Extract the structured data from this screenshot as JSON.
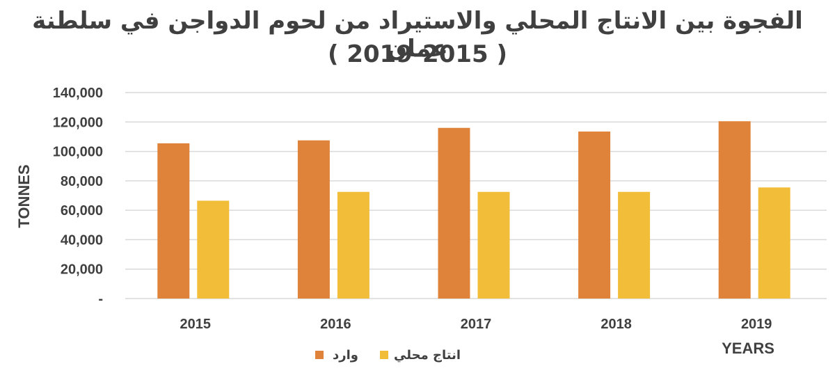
{
  "chart_data": {
    "type": "bar",
    "title": "الفجوة بين الانتاج المحلي والاستيراد من لحوم الدواجن في سلطنة عمان",
    "subtitle": "( 2019-2015 )",
    "xlabel": "YEARS",
    "ylabel": "TONNES",
    "categories": [
      "2015",
      "2016",
      "2017",
      "2018",
      "2019"
    ],
    "series": [
      {
        "name": "وارد",
        "color": "#E0833A",
        "values": [
          105500,
          107500,
          116000,
          113500,
          120500
        ]
      },
      {
        "name": "انتاج محلي",
        "color": "#F2BE3A",
        "values": [
          66500,
          72500,
          72500,
          72500,
          75500
        ]
      }
    ],
    "ylim": [
      0,
      140000
    ],
    "yticks": [
      {
        "value": 0,
        "label": "-"
      },
      {
        "value": 20000,
        "label": "20,000"
      },
      {
        "value": 40000,
        "label": "40,000"
      },
      {
        "value": 60000,
        "label": "60,000"
      },
      {
        "value": 80000,
        "label": "80,000"
      },
      {
        "value": 100000,
        "label": "100,000"
      },
      {
        "value": 120000,
        "label": "120,000"
      },
      {
        "value": 140000,
        "label": "140,000"
      }
    ],
    "grid": true,
    "legend_position": "bottom"
  }
}
